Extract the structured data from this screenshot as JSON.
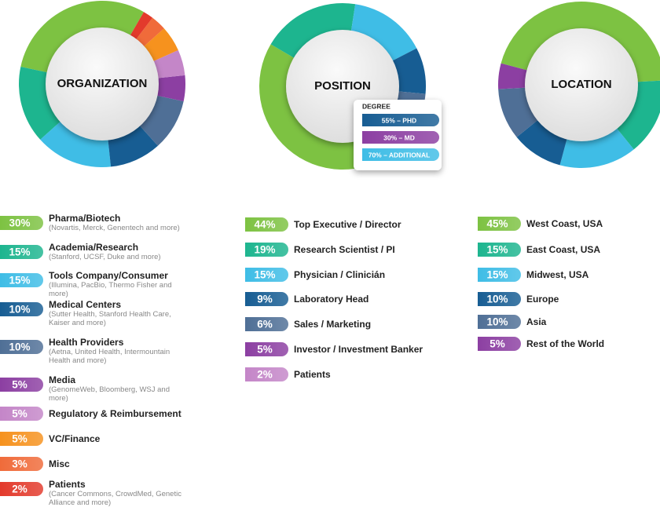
{
  "chart_data": [
    {
      "type": "donut",
      "title": "ORGANIZATION",
      "categories": [
        "Pharma/Biotech",
        "Academia/Research",
        "Tools Company/Consumer",
        "Medical Centers",
        "Health Providers",
        "Media",
        "Regulatory & Reimbursement",
        "VC/Finance",
        "Misc",
        "Patients"
      ],
      "notes": [
        "(Novartis, Merck, Genentech and more)",
        "(Stanford, UCSF, Duke and more)",
        "(Illumina, PacBio, Thermo Fisher and more)",
        "(Sutter Health, Stanford Health Care, Kaiser and more)",
        "(Aetna, United Health, Intermountain Health and more)",
        "(GenomeWeb, Bloomberg, WSJ and more)",
        null,
        null,
        null,
        "(Cancer Commons, CrowdMed, Genetic Alliance and more)"
      ],
      "values": [
        30,
        15,
        15,
        10,
        10,
        5,
        5,
        5,
        3,
        2
      ],
      "value_labels": [
        "30%",
        "15%",
        "15%",
        "10%",
        "10%",
        "5%",
        "5%",
        "5%",
        "3%",
        "2%"
      ],
      "colors": [
        "#7dc242",
        "#1db58f",
        "#3fbde6",
        "#175d93",
        "#4f6f96",
        "#8c3fa2",
        "#c486c8",
        "#f6921e",
        "#f06b3a",
        "#e33a2c"
      ]
    },
    {
      "type": "donut",
      "title": "POSITION",
      "categories": [
        "Top Executive / Director",
        "Research Scientist / PI",
        "Physician / Clinicián",
        "Laboratory Head",
        "Sales / Marketing",
        "Investor / Investment Banker",
        "Patients"
      ],
      "values": [
        44,
        19,
        15,
        9,
        6,
        5,
        2
      ],
      "value_labels": [
        "44%",
        "19%",
        "15%",
        "9%",
        "6%",
        "5%",
        "2%"
      ],
      "colors": [
        "#7dc242",
        "#1db58f",
        "#3fbde6",
        "#175d93",
        "#4f6f96",
        "#8c3fa2",
        "#c486c8"
      ]
    },
    {
      "type": "donut",
      "title": "LOCATION",
      "categories": [
        "West Coast, USA",
        "East Coast, USA",
        "Midwest, USA",
        "Europe",
        "Asia",
        "Rest of the World"
      ],
      "values": [
        45,
        15,
        15,
        10,
        10,
        5
      ],
      "value_labels": [
        "45%",
        "15%",
        "15%",
        "10%",
        "10%",
        "5%"
      ],
      "colors": [
        "#7dc242",
        "#1db58f",
        "#3fbde6",
        "#175d93",
        "#4f6f96",
        "#8c3fa2"
      ]
    }
  ],
  "degree": {
    "title": "DEGREE",
    "items": [
      "55% – PHD",
      "30% – MD",
      "70% – ADDITIONAL"
    ],
    "colors": [
      "#175d93",
      "#8c3fa2",
      "#3fbde6"
    ]
  }
}
